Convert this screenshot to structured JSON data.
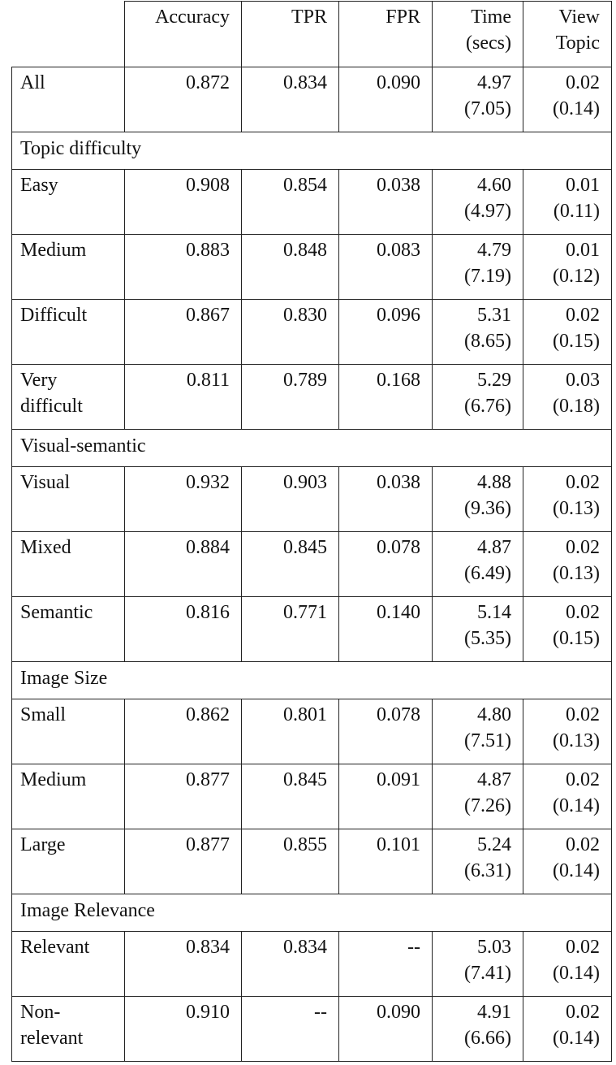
{
  "table": {
    "columns": [
      "Accuracy",
      "TPR",
      "FPR",
      "Time (secs)",
      "View Topic"
    ],
    "rows": [
      {
        "label": "All",
        "cells": [
          "0.872",
          "0.834",
          "0.090",
          "4.97 (7.05)",
          "0.02 (0.14)"
        ]
      },
      {
        "section": "Topic difficulty"
      },
      {
        "label": "Easy",
        "cells": [
          "0.908",
          "0.854",
          "0.038",
          "4.60 (4.97)",
          "0.01 (0.11)"
        ]
      },
      {
        "label": "Medium",
        "cells": [
          "0.883",
          "0.848",
          "0.083",
          "4.79 (7.19)",
          "0.01 (0.12)"
        ]
      },
      {
        "label": "Difficult",
        "cells": [
          "0.867",
          "0.830",
          "0.096",
          "5.31 (8.65)",
          "0.02 (0.15)"
        ]
      },
      {
        "label": "Very difficult",
        "cells": [
          "0.811",
          "0.789",
          "0.168",
          "5.29 (6.76)",
          "0.03 (0.18)"
        ]
      },
      {
        "section": "Visual-semantic"
      },
      {
        "label": "Visual",
        "cells": [
          "0.932",
          "0.903",
          "0.038",
          "4.88 (9.36)",
          "0.02 (0.13)"
        ]
      },
      {
        "label": "Mixed",
        "cells": [
          "0.884",
          "0.845",
          "0.078",
          "4.87 (6.49)",
          "0.02 (0.13)"
        ]
      },
      {
        "label": "Semantic",
        "cells": [
          "0.816",
          "0.771",
          "0.140",
          "5.14 (5.35)",
          "0.02 (0.15)"
        ]
      },
      {
        "section": "Image Size"
      },
      {
        "label": "Small",
        "cells": [
          "0.862",
          "0.801",
          "0.078",
          "4.80 (7.51)",
          "0.02 (0.13)"
        ]
      },
      {
        "label": "Medium",
        "cells": [
          "0.877",
          "0.845",
          "0.091",
          "4.87 (7.26)",
          "0.02 (0.14)"
        ]
      },
      {
        "label": "Large",
        "cells": [
          "0.877",
          "0.855",
          "0.101",
          "5.24 (6.31)",
          "0.02 (0.14)"
        ]
      },
      {
        "section": "Image Relevance"
      },
      {
        "label": "Relevant",
        "cells": [
          "0.834",
          "0.834",
          "--",
          "5.03 (7.41)",
          "0.02 (0.14)"
        ]
      },
      {
        "label": "Non-relevant",
        "cells": [
          "0.910",
          "--",
          "0.090",
          "4.91 (6.66)",
          "0.02 (0.14)"
        ]
      }
    ]
  }
}
